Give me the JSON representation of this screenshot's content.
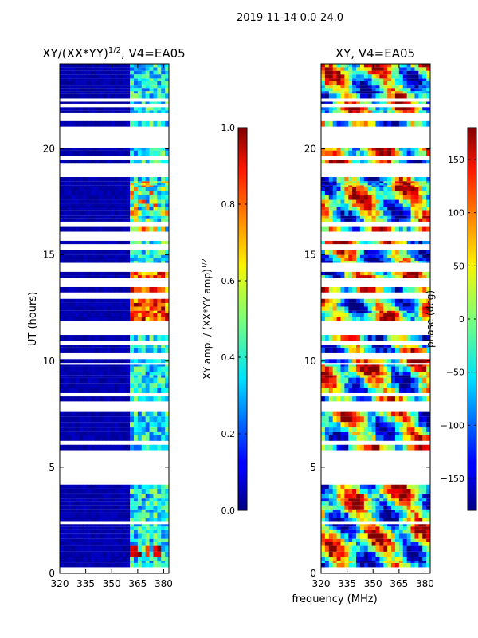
{
  "chart_data": [
    {
      "type": "heatmap",
      "title_main": "XY/(XX*YY)",
      "title_exp": "1/2",
      "title_suffix": ", V4=EA05",
      "xlabel": "frequency (MHz)",
      "ylabel": "UT (hours)",
      "x_ticks": [
        "320",
        "335",
        "350",
        "365",
        "380"
      ],
      "x_tick_values": [
        320,
        335,
        350,
        365,
        380
      ],
      "xlim": [
        320,
        383
      ],
      "y_ticks": [
        "0",
        "5",
        "10",
        "15",
        "20"
      ],
      "y_tick_values": [
        0,
        5,
        10,
        15,
        20
      ],
      "ylim": [
        0,
        24
      ],
      "data_gaps_hours": [
        [
          4.05,
          5.7
        ],
        [
          7.85,
          8.2
        ],
        [
          18.65,
          18.85
        ],
        [
          20.0,
          19.95
        ],
        [
          21.25,
          20.0
        ]
      ],
      "colorbar": {
        "label_main": "XY amp. / (XX*YY amp)",
        "label_exp": "1/2",
        "ticks": [
          "0.0",
          "0.2",
          "0.4",
          "0.6",
          "0.8",
          "1.0"
        ],
        "tick_values": [
          0.0,
          0.2,
          0.4,
          0.6,
          0.8,
          1.0
        ],
        "range": [
          0.0,
          1.0
        ]
      }
    },
    {
      "type": "heatmap",
      "title": "XY, V4=EA05",
      "x_ticks": [
        "320",
        "335",
        "350",
        "365",
        "380"
      ],
      "x_tick_values": [
        320,
        335,
        350,
        365,
        380
      ],
      "xlim": [
        320,
        383
      ],
      "y_ticks": [
        "0",
        "5",
        "10",
        "15",
        "20"
      ],
      "y_tick_values": [
        0,
        5,
        10,
        15,
        20
      ],
      "ylim": [
        0,
        24
      ],
      "colorbar": {
        "label": "phase (deg)",
        "ticks": [
          "150",
          "100",
          "50",
          "0",
          "−50",
          "−100",
          "−150"
        ],
        "tick_values": [
          150,
          100,
          50,
          0,
          -50,
          -100,
          -150
        ],
        "range": [
          -180,
          180
        ]
      }
    }
  ],
  "figure": {
    "suptitle": "2019-11-14 0.0-24.0",
    "shared_xlabel": "frequency (MHz)"
  },
  "colormap": "jet"
}
